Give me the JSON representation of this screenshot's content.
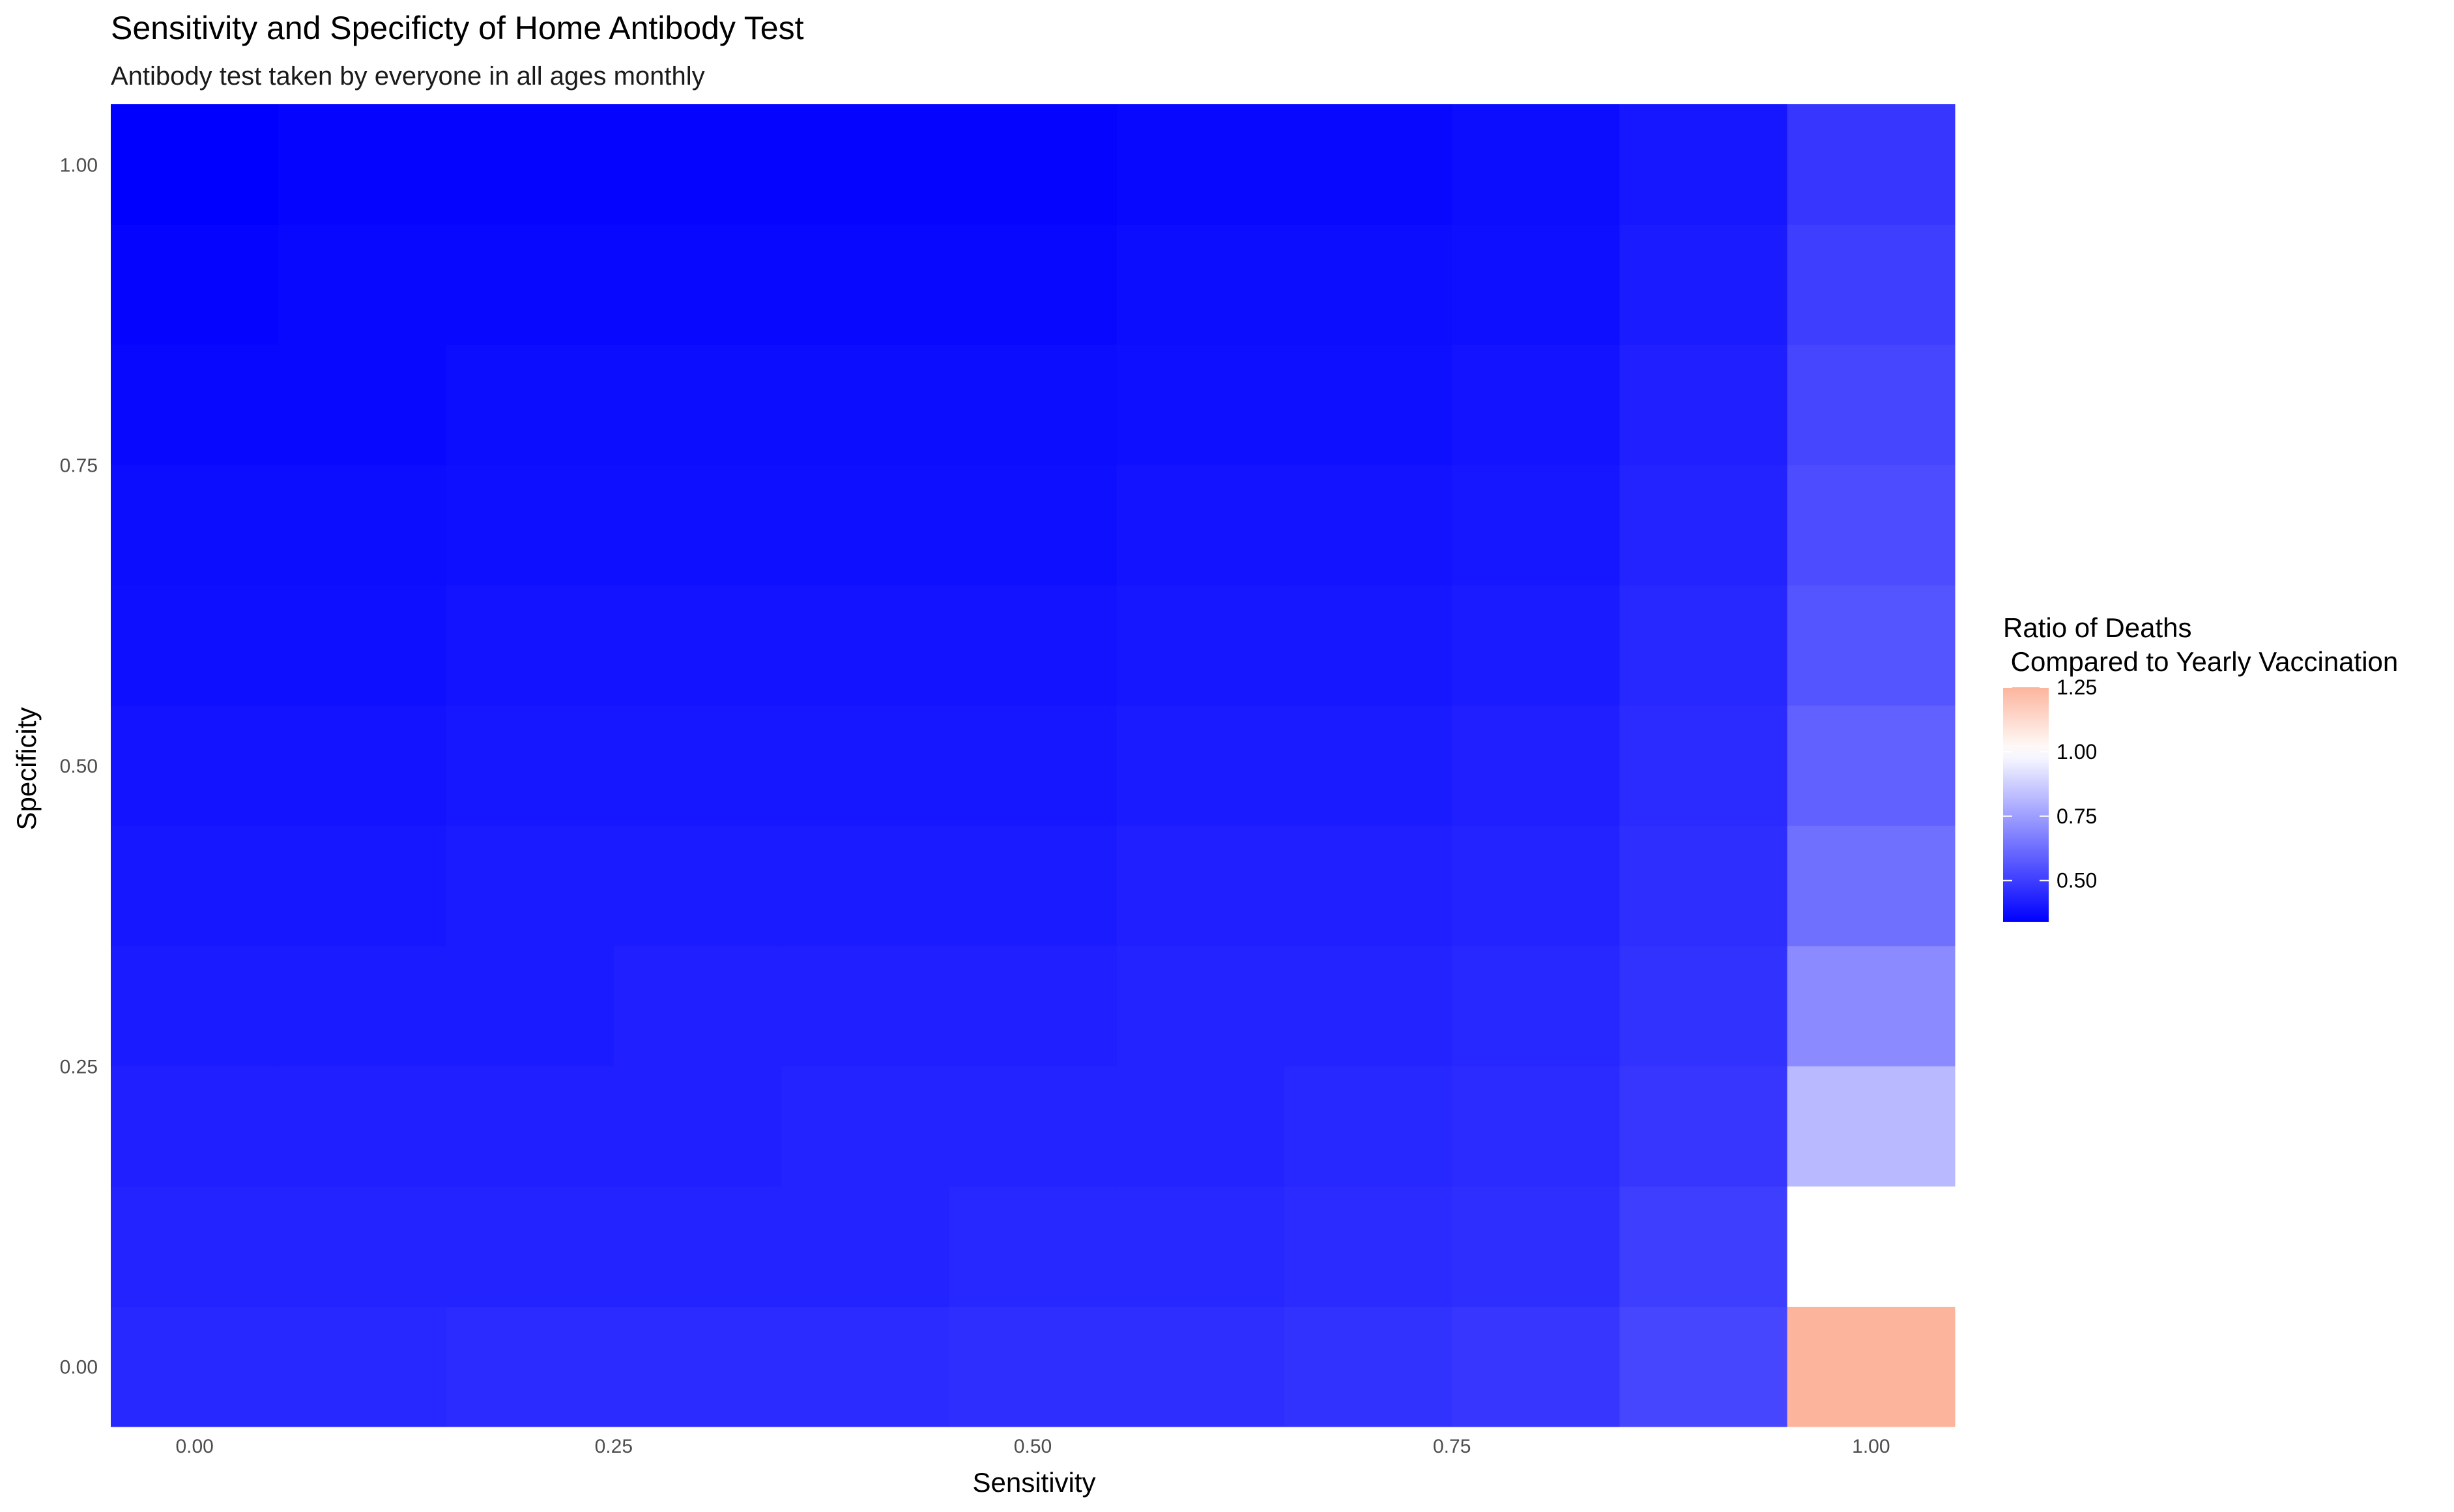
{
  "chart_data": {
    "type": "heatmap",
    "title": "Sensitivity and Specificty of Home Antibody Test",
    "subtitle": "Antibody test taken by everyone in all ages monthly",
    "xlabel": "Sensitivity",
    "ylabel": "Specificity",
    "x": [
      0.0,
      0.1,
      0.2,
      0.3,
      0.4,
      0.5,
      0.6,
      0.7,
      0.8,
      0.9,
      1.0
    ],
    "y": [
      0.0,
      0.1,
      0.2,
      0.3,
      0.4,
      0.5,
      0.6,
      0.7,
      0.8,
      0.9,
      1.0
    ],
    "xlim": [
      -0.05,
      1.05
    ],
    "ylim": [
      -0.05,
      1.05
    ],
    "x_ticks": [
      "0.00",
      "0.25",
      "0.50",
      "0.75",
      "1.00"
    ],
    "y_ticks": [
      "0.00",
      "0.25",
      "0.50",
      "0.75",
      "1.00"
    ],
    "x_tick_values": [
      0,
      0.25,
      0.5,
      0.75,
      1.0
    ],
    "y_tick_values": [
      0,
      0.25,
      0.5,
      0.75,
      1.0
    ],
    "values": [
      [
        0.44,
        0.44,
        0.45,
        0.45,
        0.45,
        0.46,
        0.46,
        0.47,
        0.48,
        0.52,
        1.25
      ],
      [
        0.43,
        0.43,
        0.43,
        0.43,
        0.43,
        0.44,
        0.44,
        0.45,
        0.46,
        0.5,
        1.0
      ],
      [
        0.42,
        0.42,
        0.42,
        0.42,
        0.43,
        0.43,
        0.43,
        0.44,
        0.45,
        0.48,
        0.82
      ],
      [
        0.41,
        0.41,
        0.41,
        0.42,
        0.42,
        0.42,
        0.43,
        0.43,
        0.44,
        0.47,
        0.7
      ],
      [
        0.4,
        0.4,
        0.41,
        0.41,
        0.41,
        0.41,
        0.42,
        0.42,
        0.43,
        0.46,
        0.63
      ],
      [
        0.39,
        0.39,
        0.4,
        0.4,
        0.4,
        0.4,
        0.41,
        0.41,
        0.42,
        0.45,
        0.59
      ],
      [
        0.38,
        0.38,
        0.39,
        0.39,
        0.39,
        0.39,
        0.4,
        0.4,
        0.41,
        0.44,
        0.56
      ],
      [
        0.37,
        0.37,
        0.38,
        0.38,
        0.38,
        0.38,
        0.39,
        0.39,
        0.4,
        0.43,
        0.54
      ],
      [
        0.36,
        0.36,
        0.37,
        0.37,
        0.37,
        0.37,
        0.38,
        0.38,
        0.39,
        0.42,
        0.52
      ],
      [
        0.35,
        0.36,
        0.36,
        0.36,
        0.36,
        0.36,
        0.37,
        0.37,
        0.38,
        0.41,
        0.5
      ],
      [
        0.34,
        0.35,
        0.35,
        0.35,
        0.35,
        0.35,
        0.36,
        0.36,
        0.37,
        0.4,
        0.48
      ]
    ],
    "legend": {
      "title_line1": "Ratio of Deaths",
      "title_line2": " Compared to Yearly Vaccination",
      "position": "right",
      "breaks": [
        "1.25",
        "1.00",
        "0.75",
        "0.50"
      ],
      "break_values": [
        1.25,
        1.0,
        0.75,
        0.5
      ],
      "range": [
        0.34,
        1.25
      ],
      "midpoint": 1.0,
      "low_color": "#0000ff",
      "mid_color": "#ffffff",
      "high_color": "#fcb49c"
    },
    "grid": true,
    "background": "#ffffff",
    "grid_color": "#ebebeb"
  }
}
